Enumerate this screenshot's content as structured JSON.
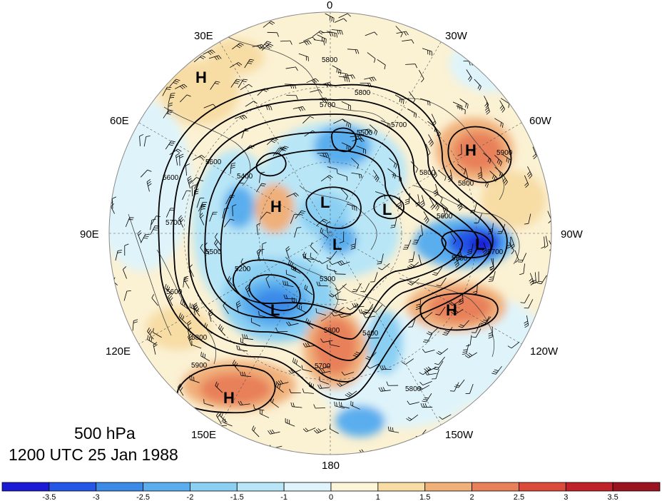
{
  "caption": {
    "level": "500 hPa",
    "time": "1200 UTC 25 Jan 1988"
  },
  "longitude_labels": {
    "lon_0": "0",
    "lon_30w": "30W",
    "lon_60w": "60W",
    "lon_90w": "90W",
    "lon_120w": "120W",
    "lon_150w": "150W",
    "lon_180": "180",
    "lon_150e": "150E",
    "lon_120e": "120E",
    "lon_90e": "90E",
    "lon_60e": "60E",
    "lon_30e": "30E"
  },
  "pressure_centers": [
    {
      "id": "h-europe",
      "label": "H"
    },
    {
      "id": "h-atlantic",
      "label": "H"
    },
    {
      "id": "h-siberia",
      "label": "H"
    },
    {
      "id": "l-arctic-1",
      "label": "L"
    },
    {
      "id": "l-arctic-2",
      "label": "L"
    },
    {
      "id": "l-arctic-3",
      "label": "L"
    },
    {
      "id": "l-hudson",
      "label": "L"
    },
    {
      "id": "l-okhotsk",
      "label": "L"
    },
    {
      "id": "h-eastpac",
      "label": "H"
    },
    {
      "id": "h-westpac",
      "label": "H"
    }
  ],
  "contour_labels": {
    "c1": "5800",
    "c2": "5800",
    "c3": "5700",
    "c4": "5500",
    "c5": "5700",
    "c6": "5800",
    "c7": "5600",
    "c8": "5900",
    "c9": "5800",
    "c10": "5600",
    "c11": "5700",
    "c12": "5500",
    "c13": "5400",
    "c14": "5200",
    "c15": "5300",
    "c16": "5600",
    "c17": "5500",
    "c18": "5700",
    "c19": "5600",
    "c20": "5800",
    "c21": "5900",
    "c22": "5700",
    "c23": "5800",
    "c24": "5400",
    "c25": "5800"
  },
  "colorbar": {
    "ticks": [
      "-3.5",
      "-3",
      "-2.5",
      "-2",
      "-1.5",
      "-1",
      "0",
      "1",
      "1.5",
      "2",
      "2.5",
      "3",
      "3.5"
    ],
    "colors": [
      "#1b1bd6",
      "#2457e6",
      "#3b8ae8",
      "#5aaeee",
      "#8bd0f3",
      "#b8e6f7",
      "#dff4fa",
      "#fdf5d8",
      "#f7dca4",
      "#f0b07a",
      "#e8805a",
      "#dc4a3a",
      "#c0222a",
      "#99141e"
    ]
  },
  "colors": {
    "contour": "#000000",
    "outline": "#8a8a8a",
    "coast": "#444444"
  }
}
